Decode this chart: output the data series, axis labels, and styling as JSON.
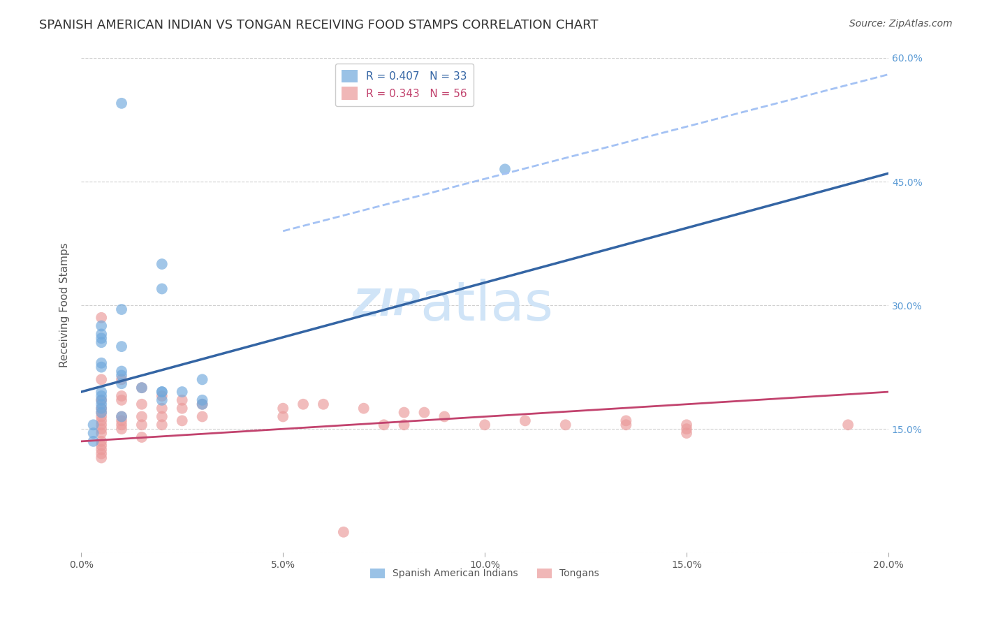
{
  "title": "SPANISH AMERICAN INDIAN VS TONGAN RECEIVING FOOD STAMPS CORRELATION CHART",
  "source": "Source: ZipAtlas.com",
  "ylabel": "Receiving Food Stamps",
  "xlim": [
    0.0,
    0.2
  ],
  "ylim": [
    0.0,
    0.6
  ],
  "blue_R": 0.407,
  "blue_N": 33,
  "pink_R": 0.343,
  "pink_N": 56,
  "blue_color": "#6fa8dc",
  "pink_color": "#ea9999",
  "blue_line_color": "#3465a4",
  "pink_line_color": "#c2436e",
  "dashed_line_color": "#a4c2f4",
  "watermark_zip": "ZIP",
  "watermark_atlas": "atlas",
  "blue_scatter_x": [
    0.01,
    0.02,
    0.02,
    0.01,
    0.005,
    0.005,
    0.005,
    0.005,
    0.01,
    0.005,
    0.005,
    0.01,
    0.01,
    0.01,
    0.015,
    0.005,
    0.005,
    0.005,
    0.005,
    0.005,
    0.005,
    0.01,
    0.02,
    0.02,
    0.02,
    0.025,
    0.03,
    0.03,
    0.03,
    0.105,
    0.003,
    0.003,
    0.003
  ],
  "blue_scatter_y": [
    0.545,
    0.35,
    0.32,
    0.295,
    0.275,
    0.265,
    0.26,
    0.255,
    0.25,
    0.23,
    0.225,
    0.22,
    0.215,
    0.205,
    0.2,
    0.195,
    0.19,
    0.185,
    0.18,
    0.175,
    0.17,
    0.165,
    0.195,
    0.195,
    0.185,
    0.195,
    0.185,
    0.18,
    0.21,
    0.465,
    0.155,
    0.145,
    0.135
  ],
  "pink_scatter_x": [
    0.005,
    0.005,
    0.005,
    0.005,
    0.005,
    0.005,
    0.005,
    0.005,
    0.005,
    0.005,
    0.005,
    0.005,
    0.005,
    0.005,
    0.005,
    0.01,
    0.01,
    0.01,
    0.01,
    0.01,
    0.01,
    0.01,
    0.015,
    0.015,
    0.015,
    0.015,
    0.015,
    0.02,
    0.02,
    0.02,
    0.02,
    0.025,
    0.025,
    0.025,
    0.03,
    0.03,
    0.05,
    0.05,
    0.055,
    0.06,
    0.065,
    0.07,
    0.075,
    0.08,
    0.08,
    0.085,
    0.09,
    0.1,
    0.11,
    0.12,
    0.135,
    0.135,
    0.15,
    0.15,
    0.15,
    0.19
  ],
  "pink_scatter_y": [
    0.285,
    0.21,
    0.185,
    0.175,
    0.17,
    0.165,
    0.16,
    0.155,
    0.15,
    0.145,
    0.135,
    0.13,
    0.125,
    0.12,
    0.115,
    0.21,
    0.19,
    0.185,
    0.165,
    0.16,
    0.155,
    0.15,
    0.2,
    0.18,
    0.165,
    0.155,
    0.14,
    0.19,
    0.175,
    0.165,
    0.155,
    0.185,
    0.175,
    0.16,
    0.18,
    0.165,
    0.175,
    0.165,
    0.18,
    0.18,
    0.025,
    0.175,
    0.155,
    0.17,
    0.155,
    0.17,
    0.165,
    0.155,
    0.16,
    0.155,
    0.16,
    0.155,
    0.155,
    0.15,
    0.145,
    0.155
  ],
  "blue_line_x": [
    0.0,
    0.2
  ],
  "blue_line_y": [
    0.195,
    0.46
  ],
  "pink_line_x": [
    0.0,
    0.2
  ],
  "pink_line_y": [
    0.135,
    0.195
  ],
  "dashed_line_x": [
    0.05,
    0.2
  ],
  "dashed_line_y": [
    0.39,
    0.58
  ],
  "grid_color": "#d0d0d0",
  "bg_color": "#ffffff",
  "title_fontsize": 13,
  "label_fontsize": 11,
  "tick_fontsize": 10,
  "legend_fontsize": 11,
  "watermark_fontsize": 38,
  "watermark_color": "#d0e4f7",
  "source_fontsize": 10,
  "right_tick_color": "#5b9bd5",
  "axis_label_color": "#555555",
  "title_color": "#333333"
}
